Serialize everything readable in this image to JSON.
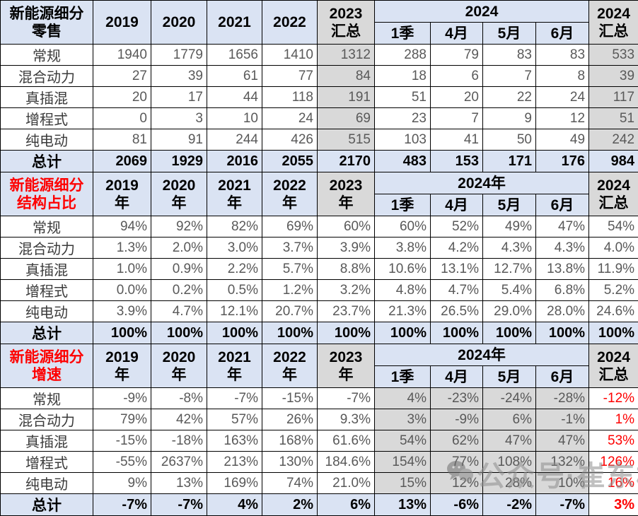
{
  "colors": {
    "header_bg": "#dae3f3",
    "gray_bg": "#d9d9d9",
    "red_accent": "#fe0000",
    "border": "#000000"
  },
  "chart_data": [
    {
      "type": "table",
      "title": "新能源细分零售",
      "title_lines": [
        "新能源细分",
        "零售"
      ],
      "title_red": false,
      "year_headers": [
        [
          "2019"
        ],
        [
          "2020"
        ],
        [
          "2021"
        ],
        [
          "2022"
        ]
      ],
      "h2023_lines": [
        "2023",
        "汇总"
      ],
      "h2024_span": "2024",
      "sub_headers": [
        "1季",
        "4月",
        "5月",
        "6月"
      ],
      "h2024_sum_lines": [
        "2024",
        "汇总"
      ],
      "rows": [
        {
          "label": "常规",
          "cells": [
            "1940",
            "1779",
            "1656",
            "1410",
            "1312",
            "288",
            "79",
            "83",
            "83",
            "533"
          ]
        },
        {
          "label": "混合动力",
          "cells": [
            "27",
            "39",
            "61",
            "77",
            "84",
            "18",
            "6",
            "7",
            "8",
            "39"
          ]
        },
        {
          "label": "真插混",
          "cells": [
            "20",
            "17",
            "44",
            "118",
            "191",
            "51",
            "20",
            "22",
            "24",
            "117"
          ]
        },
        {
          "label": "增程式",
          "cells": [
            "0",
            "3",
            "10",
            "24",
            "69",
            "23",
            "7",
            "9",
            "12",
            "51"
          ]
        },
        {
          "label": "纯电动",
          "cells": [
            "81",
            "91",
            "244",
            "426",
            "515",
            "103",
            "41",
            "50",
            "49",
            "242"
          ]
        }
      ],
      "total": {
        "label": "总计",
        "cells": [
          "2069",
          "1929",
          "2016",
          "2055",
          "2170",
          "483",
          "153",
          "171",
          "176",
          "984"
        ]
      },
      "style": {
        "cell_bg": [
          "w",
          "w",
          "w",
          "w",
          "g",
          "w",
          "w",
          "w",
          "w",
          "g"
        ],
        "total_bg": [
          "h",
          "h",
          "h",
          "h",
          "h",
          "h",
          "h",
          "h",
          "h",
          "h"
        ],
        "red_cols": []
      }
    },
    {
      "type": "table",
      "title": "新能源细分结构占比",
      "title_lines": [
        "新能源细分",
        "结构占比"
      ],
      "title_red": true,
      "year_headers": [
        [
          "2019",
          "年"
        ],
        [
          "2020",
          "年"
        ],
        [
          "2021",
          "年"
        ],
        [
          "2022",
          "年"
        ]
      ],
      "h2023_lines": [
        "2023",
        "年"
      ],
      "h2024_span": "2024年",
      "sub_headers": [
        "1季",
        "4月",
        "5月",
        "6月"
      ],
      "h2024_sum_lines": [
        "2024",
        "汇总"
      ],
      "rows": [
        {
          "label": "常规",
          "cells": [
            "94%",
            "92%",
            "82%",
            "69%",
            "60%",
            "60%",
            "52%",
            "49%",
            "47%",
            "54%"
          ]
        },
        {
          "label": "混合动力",
          "cells": [
            "1.3%",
            "2.0%",
            "3.0%",
            "3.7%",
            "3.9%",
            "3.8%",
            "4.2%",
            "4.3%",
            "4.3%",
            "4.0%"
          ]
        },
        {
          "label": "真插混",
          "cells": [
            "1.0%",
            "0.9%",
            "2.2%",
            "5.7%",
            "8.8%",
            "10.6%",
            "13.1%",
            "12.7%",
            "13.8%",
            "11.9%"
          ]
        },
        {
          "label": "增程式",
          "cells": [
            "0.0%",
            "0.2%",
            "0.5%",
            "1.2%",
            "3.2%",
            "4.8%",
            "4.7%",
            "5.4%",
            "6.8%",
            "5.2%"
          ]
        },
        {
          "label": "纯电动",
          "cells": [
            "3.9%",
            "4.7%",
            "12.1%",
            "20.7%",
            "23.7%",
            "21.3%",
            "26.5%",
            "29.0%",
            "28.0%",
            "24.6%"
          ]
        }
      ],
      "total": {
        "label": "总计",
        "cells": [
          "100%",
          "100%",
          "100%",
          "100%",
          "100%",
          "100%",
          "100%",
          "100%",
          "100%",
          "100%"
        ]
      },
      "style": {
        "cell_bg": [
          "w",
          "w",
          "w",
          "w",
          "w",
          "w",
          "w",
          "w",
          "w",
          "w"
        ],
        "total_bg": [
          "h",
          "h",
          "h",
          "h",
          "h",
          "h",
          "h",
          "h",
          "h",
          "h"
        ],
        "red_cols": []
      }
    },
    {
      "type": "table",
      "title": "新能源细分增速",
      "title_lines": [
        "新能源细分",
        "增速"
      ],
      "title_red": true,
      "year_headers": [
        [
          "2019",
          "年"
        ],
        [
          "2020",
          "年"
        ],
        [
          "2021",
          "年"
        ],
        [
          "2022",
          "年"
        ]
      ],
      "h2023_lines": [
        "2023",
        "年"
      ],
      "h2024_span": "2024年",
      "sub_headers": [
        "1季",
        "4月",
        "5月",
        "6月"
      ],
      "h2024_sum_lines": [
        "2024",
        "汇总"
      ],
      "rows": [
        {
          "label": "常规",
          "cells": [
            "-9%",
            "-8%",
            "-7%",
            "-15%",
            "-7%",
            "4%",
            "-23%",
            "-24%",
            "-28%",
            "-12%"
          ]
        },
        {
          "label": "混合动力",
          "cells": [
            "79%",
            "42%",
            "57%",
            "26%",
            "9.3%",
            "3%",
            "-9%",
            "6%",
            "-1%",
            "1%"
          ]
        },
        {
          "label": "真插混",
          "cells": [
            "-15%",
            "-18%",
            "163%",
            "168%",
            "61.6%",
            "54%",
            "62%",
            "47%",
            "47%",
            "53%"
          ]
        },
        {
          "label": "增程式",
          "cells": [
            "-55%",
            "2637%",
            "213%",
            "130%",
            "184.6%",
            "154%",
            "77%",
            "108%",
            "132%",
            "126%"
          ]
        },
        {
          "label": "纯电动",
          "cells": [
            "9%",
            "13%",
            "169%",
            "74%",
            "21.0%",
            "15%",
            "12%",
            "28%",
            "10%",
            "16%"
          ]
        }
      ],
      "total": {
        "label": "总计",
        "cells": [
          "-7%",
          "-7%",
          "4%",
          "2%",
          "6%",
          "13%",
          "-6%",
          "-2%",
          "-7%",
          "3%"
        ]
      },
      "style": {
        "cell_bg": [
          "w",
          "w",
          "w",
          "w",
          "w",
          "g",
          "g",
          "g",
          "g",
          "w"
        ],
        "total_bg": [
          "h",
          "h",
          "h",
          "h",
          "h",
          "h",
          "h",
          "h",
          "h",
          "w"
        ],
        "red_cols": [
          9
        ]
      }
    }
  ],
  "watermark": {
    "icon": "wechat-icon",
    "text": "公众号·崔东树"
  }
}
